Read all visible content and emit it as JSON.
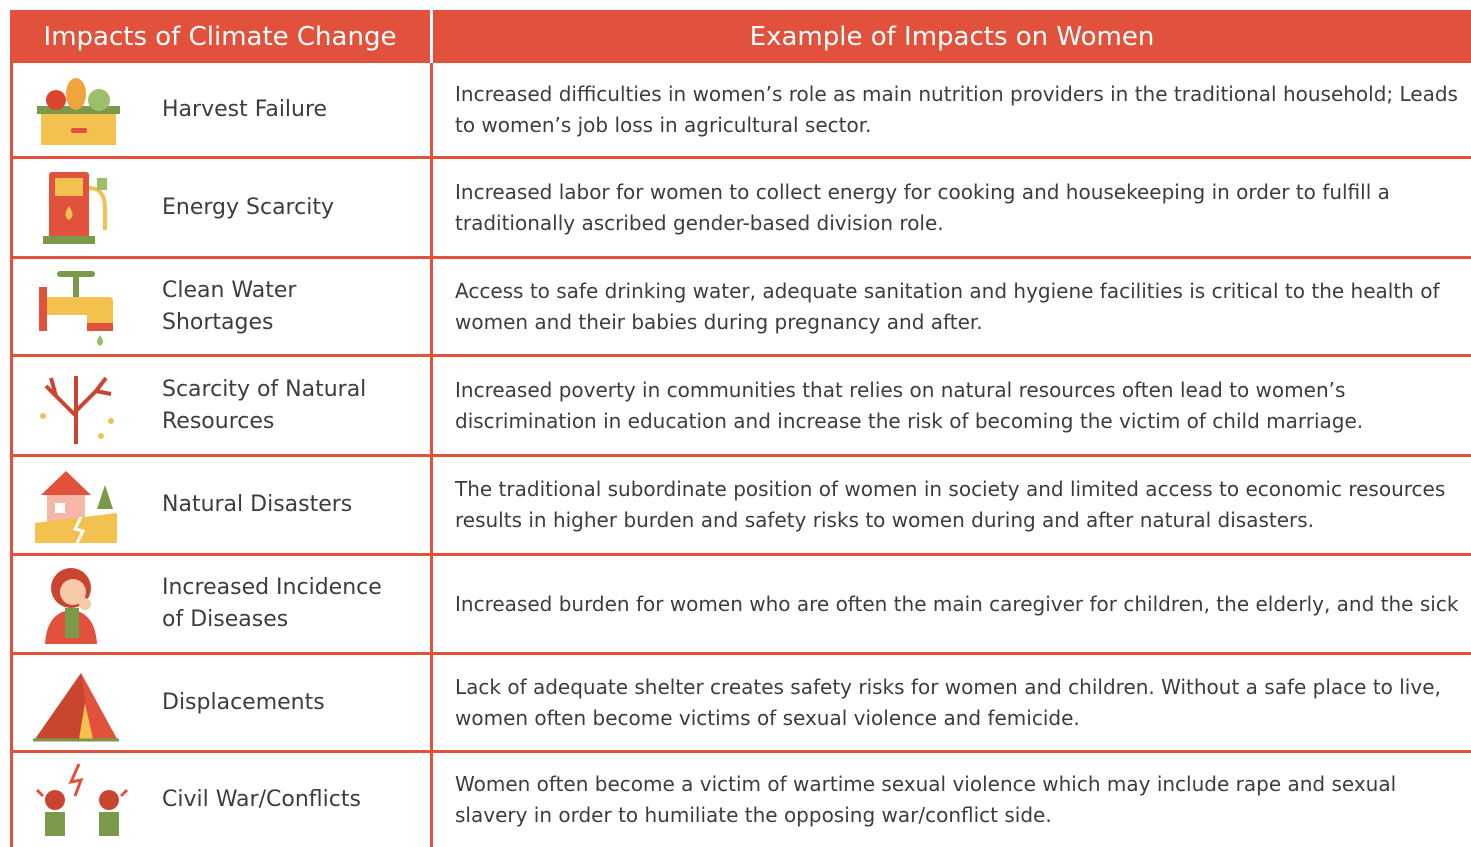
{
  "header": {
    "left": "Impacts of Climate Change",
    "right": "Example of Impacts on Women"
  },
  "rows": [
    {
      "impact": "Harvest Failure",
      "description": "Increased difficulties in women’s role as main nutrition providers in the traditional household; Leads to women’s job loss in agricultural sector."
    },
    {
      "impact": "Energy Scarcity",
      "description": "Increased labor for women to collect energy for cooking and housekeeping in order to fulfill a traditionally ascribed gender-based division role."
    },
    {
      "impact": "Clean Water Shortages",
      "description": "Access to safe drinking water, adequate sanitation and hygiene facilities is critical to the health of women and their babies during pregnancy and after."
    },
    {
      "impact": "Scarcity of Natural Resources",
      "description": "Increased poverty in communities that relies on natural resources often lead to women’s discrimination in education and increase the risk of becoming the victim of child marriage."
    },
    {
      "impact": "Natural Disasters",
      "description": "The traditional subordinate position of women in society and limited access to economic resources results in  higher burden and safety risks to women during and after natural disasters."
    },
    {
      "impact": "Increased Incidence of Diseases",
      "description": "Increased burden for women who are often the main caregiver for children, the elderly, and the sick"
    },
    {
      "impact": "Displacements",
      "description": "Lack of adequate shelter creates safety risks for women and children. Without a safe place to live, women often become victims of sexual violence and femicide."
    },
    {
      "impact": "Civil War/Conflicts",
      "description": "Women often become a victim of wartime sexual violence which may include rape and sexual slavery in order to humiliate the opposing war/conflict side."
    }
  ]
}
